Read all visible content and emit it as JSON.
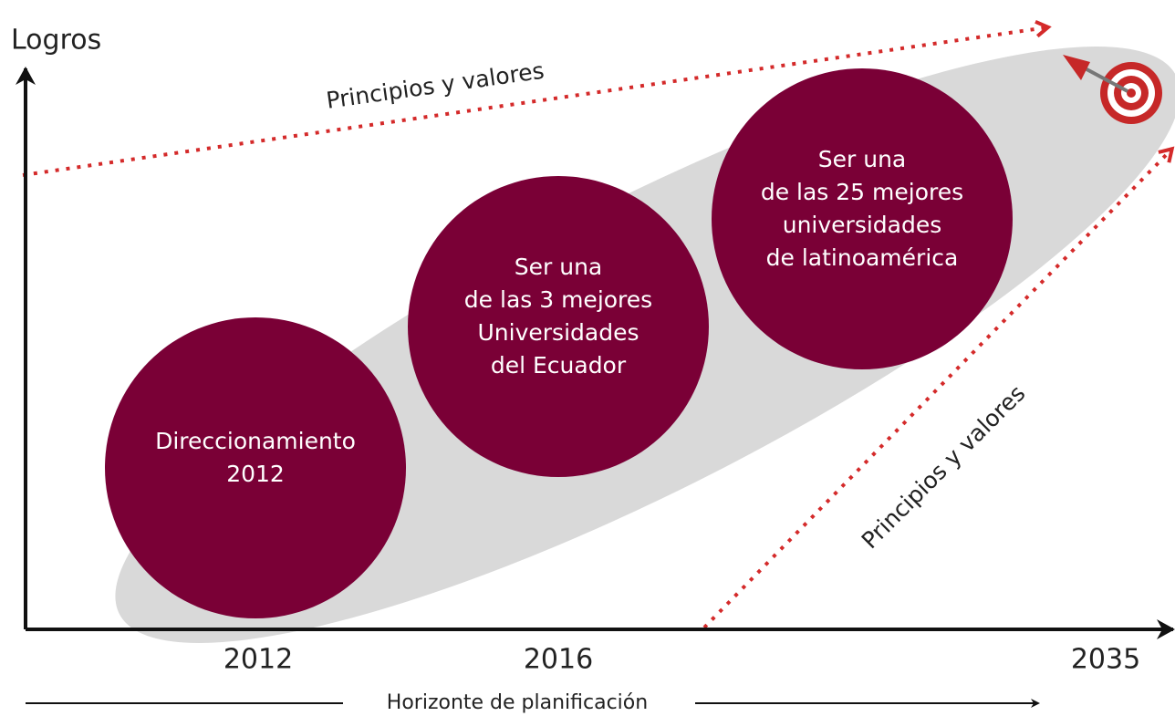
{
  "y_axis_label": "Logros",
  "x_labels": [
    "2012",
    "2016",
    "2035"
  ],
  "horizon_label": "Horizonte de planificación",
  "arrow_labels": [
    "Principios y valores",
    "Principios y valores"
  ],
  "nodes": [
    {
      "lines": [
        "Direccionamiento",
        "2012"
      ]
    },
    {
      "lines": [
        "Ser una",
        "de las 3 mejores",
        "Universidades",
        "del Ecuador"
      ]
    },
    {
      "lines": [
        "Ser una",
        "de las 25 mejores",
        "universidades",
        "de latinoamérica"
      ]
    }
  ]
}
